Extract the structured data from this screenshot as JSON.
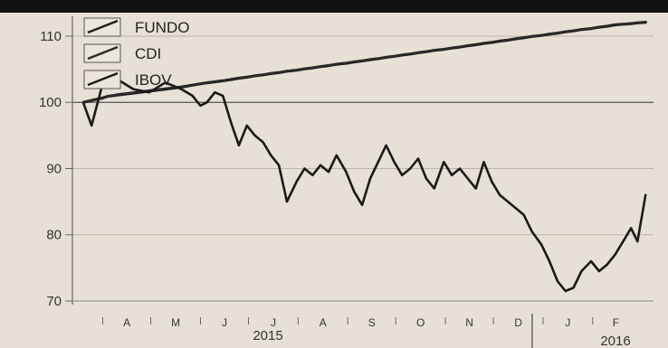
{
  "chart_data": {
    "type": "line",
    "title": "",
    "xlabel": "",
    "ylabel": "",
    "ylim": [
      70,
      113
    ],
    "yticks": [
      70,
      80,
      90,
      100,
      110
    ],
    "grid": true,
    "legend_placement": "top-left",
    "x_month_labels": [
      "A",
      "M",
      "J",
      "J",
      "A",
      "S",
      "O",
      "N",
      "D",
      "J",
      "F"
    ],
    "year_labels": [
      "2015",
      "2016"
    ],
    "x": [
      "2015-03-20",
      "2015-03-25",
      "2015-03-31",
      "2015-04-04",
      "2015-04-10",
      "2015-04-20",
      "2015-04-30",
      "2015-05-10",
      "2015-05-20",
      "2015-05-27",
      "2015-06-01",
      "2015-06-05",
      "2015-06-10",
      "2015-06-15",
      "2015-06-20",
      "2015-06-25",
      "2015-06-30",
      "2015-07-05",
      "2015-07-10",
      "2015-07-15",
      "2015-07-20",
      "2015-07-25",
      "2015-07-31",
      "2015-08-05",
      "2015-08-10",
      "2015-08-15",
      "2015-08-20",
      "2015-08-25",
      "2015-08-31",
      "2015-09-05",
      "2015-09-10",
      "2015-09-15",
      "2015-09-20",
      "2015-09-25",
      "2015-09-30",
      "2015-10-05",
      "2015-10-10",
      "2015-10-15",
      "2015-10-20",
      "2015-10-25",
      "2015-10-31",
      "2015-11-05",
      "2015-11-10",
      "2015-11-15",
      "2015-11-20",
      "2015-11-25",
      "2015-11-30",
      "2015-12-05",
      "2015-12-10",
      "2015-12-15",
      "2015-12-20",
      "2015-12-25",
      "2015-12-31",
      "2016-01-05",
      "2016-01-10",
      "2016-01-15",
      "2016-01-20",
      "2016-01-25",
      "2016-01-31",
      "2016-02-05",
      "2016-02-10",
      "2016-02-15",
      "2016-02-20",
      "2016-02-25",
      "2016-02-29",
      "2016-03-05"
    ],
    "series": [
      {
        "name": "FUNDO",
        "color": "#1e1e1e",
        "values": [
          100,
          100.3,
          100.6,
          100.9,
          101.1,
          101.4,
          101.7,
          102.0,
          102.3,
          102.6,
          102.8,
          102.95,
          103.1,
          103.25,
          103.45,
          103.65,
          103.8,
          104.0,
          104.15,
          104.35,
          104.5,
          104.7,
          104.85,
          105.05,
          105.2,
          105.4,
          105.55,
          105.75,
          105.9,
          106.1,
          106.25,
          106.45,
          106.6,
          106.8,
          106.95,
          107.15,
          107.3,
          107.5,
          107.65,
          107.85,
          108.0,
          108.2,
          108.35,
          108.55,
          108.7,
          108.9,
          109.05,
          109.25,
          109.4,
          109.6,
          109.75,
          109.95,
          110.1,
          110.3,
          110.45,
          110.65,
          110.8,
          111.0,
          111.15,
          111.35,
          111.5,
          111.7,
          111.8,
          111.9,
          112.0,
          112.1
        ]
      },
      {
        "name": "CDI",
        "color": "#2a2a2a",
        "values": [
          100,
          100.3,
          100.6,
          100.9,
          101.2,
          101.5,
          101.8,
          102.1,
          102.4,
          102.65,
          102.85,
          103.0,
          103.15,
          103.3,
          103.5,
          103.7,
          103.85,
          104.05,
          104.2,
          104.4,
          104.55,
          104.75,
          104.9,
          105.1,
          105.25,
          105.45,
          105.6,
          105.8,
          105.95,
          106.15,
          106.3,
          106.5,
          106.65,
          106.85,
          107.0,
          107.2,
          107.35,
          107.55,
          107.7,
          107.9,
          108.05,
          108.25,
          108.4,
          108.6,
          108.75,
          108.95,
          109.1,
          109.3,
          109.45,
          109.65,
          109.8,
          110.0,
          110.15,
          110.35,
          110.5,
          110.7,
          110.85,
          111.05,
          111.2,
          111.4,
          111.55,
          111.75,
          111.85,
          111.95,
          112.05,
          112.15
        ]
      },
      {
        "name": "IBOV",
        "color": "#1a1a1a",
        "values": [
          99.8,
          96.5,
          102.0,
          104.5,
          103.5,
          102.0,
          101.5,
          103.0,
          102.0,
          101.0,
          99.5,
          100.0,
          101.5,
          101.0,
          97.0,
          93.5,
          96.5,
          95.0,
          94.0,
          92.0,
          90.5,
          85.0,
          88.0,
          90.0,
          89.0,
          90.5,
          89.5,
          92.0,
          89.5,
          86.5,
          84.5,
          88.5,
          91.0,
          93.5,
          91.0,
          89.0,
          90.0,
          91.5,
          88.5,
          87.0,
          91.0,
          89.0,
          90.0,
          88.5,
          87.0,
          91.0,
          88.0,
          86.0,
          85.0,
          84.0,
          83.0,
          80.5,
          78.5,
          76.0,
          73.0,
          71.5,
          72.0,
          74.5,
          76.0,
          74.5,
          75.5,
          77.0,
          79.0,
          81.0,
          79.0,
          86.0
        ]
      }
    ]
  }
}
